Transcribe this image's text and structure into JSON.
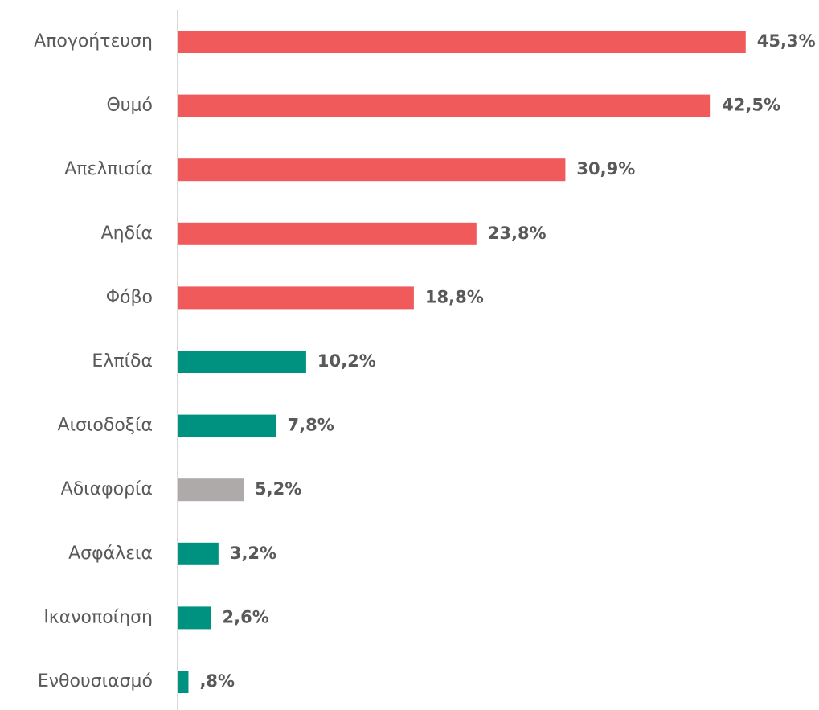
{
  "chart_data": {
    "type": "hbar",
    "categories": [
      "Απογοήτευση",
      "Θυμό",
      "Απελπισία",
      "Αηδία",
      "Φόβο",
      "Ελπίδα",
      "Αισιοδοξία",
      "Αδιαφορία",
      "Ασφάλεια",
      "Ικανοποίηση",
      "Ενθουσιασμό"
    ],
    "values": [
      45.3,
      42.5,
      30.9,
      23.8,
      18.8,
      10.2,
      7.8,
      5.2,
      3.2,
      2.6,
      0.8
    ],
    "value_labels": [
      "45,3%",
      "42,5%",
      "30,9%",
      "23,8%",
      "18,8%",
      "10,2%",
      "7,8%",
      "5,2%",
      "3,2%",
      "2,6%",
      ",8%"
    ],
    "colors": [
      "#f05a5a",
      "#f05a5a",
      "#f05a5a",
      "#f05a5a",
      "#f05a5a",
      "#009280",
      "#009280",
      "#aeaaaa",
      "#009280",
      "#009280",
      "#009280"
    ],
    "xlim": [
      0,
      50
    ]
  }
}
